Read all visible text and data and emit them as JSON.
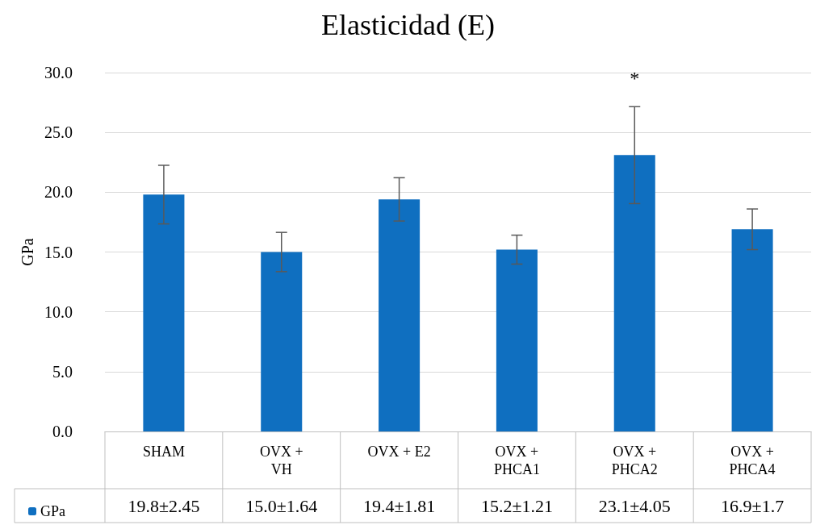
{
  "chart_data": {
    "type": "bar",
    "title": "Elasticidad (E)",
    "ylabel": "GPa",
    "categories": [
      "SHAM",
      "OVX +\nVH",
      "OVX + E2",
      "OVX +\nPHCA1",
      "OVX +\nPHCA2",
      "OVX +\nPHCA4"
    ],
    "series": [
      {
        "name": "GPa",
        "color": "#0f6fc0",
        "values": [
          19.8,
          15.0,
          19.4,
          15.2,
          23.1,
          16.9
        ],
        "errors": [
          2.45,
          1.64,
          1.81,
          1.21,
          4.05,
          1.7
        ],
        "value_labels": [
          "19.8±2.45",
          "15.0±1.64",
          "19.4±1.81",
          "15.2±1.21",
          "23.1±4.05",
          "16.9±1.7"
        ]
      }
    ],
    "ylim": [
      0,
      30
    ],
    "yticks": [
      {
        "value": 0,
        "label": "0.0"
      },
      {
        "value": 5,
        "label": "5.0"
      },
      {
        "value": 10,
        "label": "10.0"
      },
      {
        "value": 15,
        "label": "15.0"
      },
      {
        "value": 20,
        "label": "20.0"
      },
      {
        "value": 25,
        "label": "25.0"
      },
      {
        "value": 30,
        "label": "30.0"
      }
    ],
    "grid": "y",
    "legend": "bottom left",
    "annotations": [
      "*"
    ]
  }
}
